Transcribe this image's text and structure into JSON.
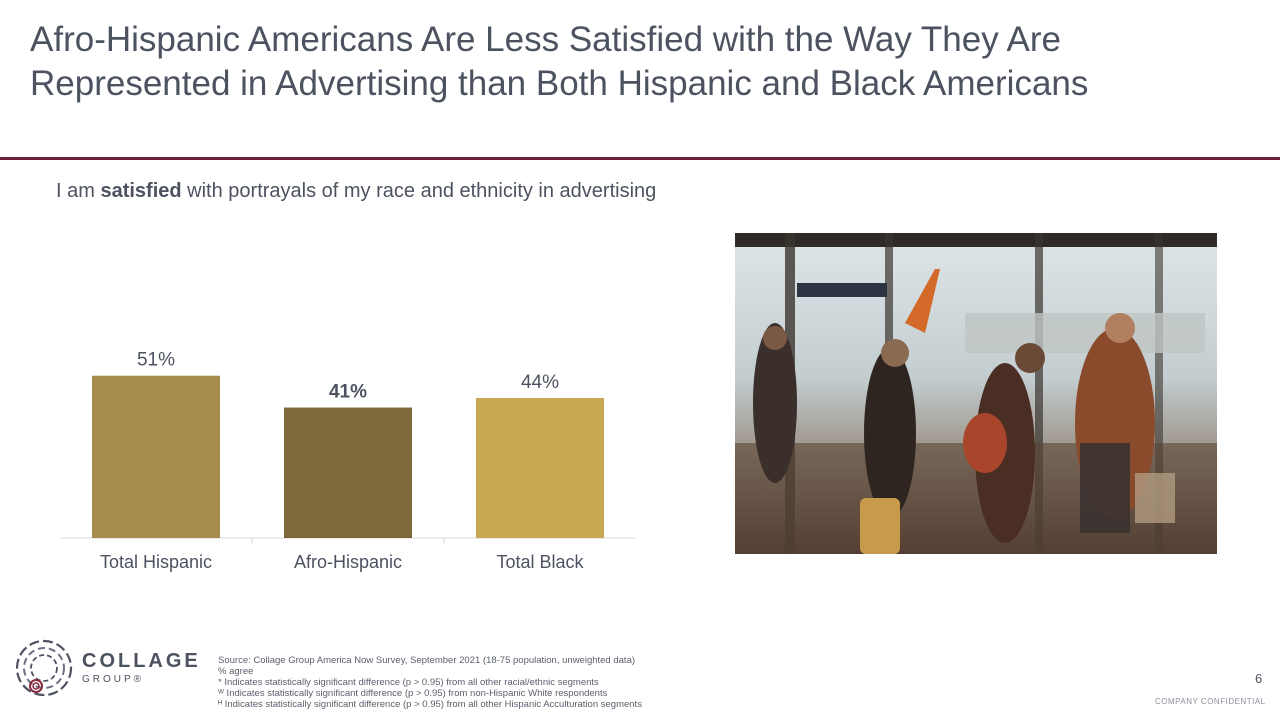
{
  "slide": {
    "title": "Afro-Hispanic Americans Are Less Satisfied with the Way They Are Represented in Advertising than Both Hispanic and Black Americans",
    "subtitle_prefix": "I am ",
    "subtitle_bold": "satisfied",
    "subtitle_suffix": " with portrayals of my race and ethnicity in advertising",
    "page_number": "6",
    "confidential": "COMPANY CONFIDENTIAL",
    "accent_color": "#6b2236"
  },
  "logo": {
    "line1": "COLLAGE",
    "line2": "GROUP®"
  },
  "footnotes": [
    "Source: Collage Group America Now Survey, September 2021 (18-75 population, unweighted data)",
    "% agree",
    "* Indicates statistically significant difference (p > 0.95) from all other racial/ethnic segments",
    "ᵂ Indicates statistically significant difference (p > 0.95) from non-Hispanic White respondents",
    "ᴴ Indicates statistically significant difference (p > 0.95) from all other Hispanic Acculturation segments"
  ],
  "chart_data": {
    "type": "bar",
    "categories": [
      "Total Hispanic",
      "Afro-Hispanic",
      "Total Black"
    ],
    "values": [
      51,
      41,
      44
    ],
    "labels": [
      "51%",
      "41%",
      "44%"
    ],
    "bold_labels": [
      false,
      true,
      false
    ],
    "colors": [
      "#a68a4e",
      "#7d693c",
      "#c9a852"
    ],
    "ylim": [
      0,
      55
    ],
    "grid": false,
    "title": "",
    "xlabel": "",
    "ylabel": ""
  }
}
